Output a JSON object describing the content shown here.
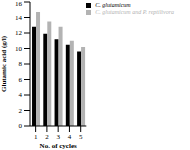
{
  "chart_data": {
    "type": "bar",
    "x_label": "No. of cycles",
    "y_label": "Glutamic acid (g/l)",
    "categories": [
      "1",
      "2",
      "3",
      "4",
      "5"
    ],
    "series": [
      {
        "name": "C. glutamicum",
        "color": "#000000",
        "values": [
          12.8,
          11.9,
          11.2,
          10.5,
          9.6
        ]
      },
      {
        "name": "C. glutamicum and P. reptilivora",
        "color": "#b3b3b3",
        "values": [
          14.7,
          13.5,
          12.8,
          11.0,
          10.2
        ]
      }
    ],
    "ylim": [
      0,
      16
    ],
    "yticks": [
      0,
      2,
      4,
      6,
      8,
      10,
      12,
      14,
      16
    ],
    "grid": false,
    "legend": "upper right"
  }
}
